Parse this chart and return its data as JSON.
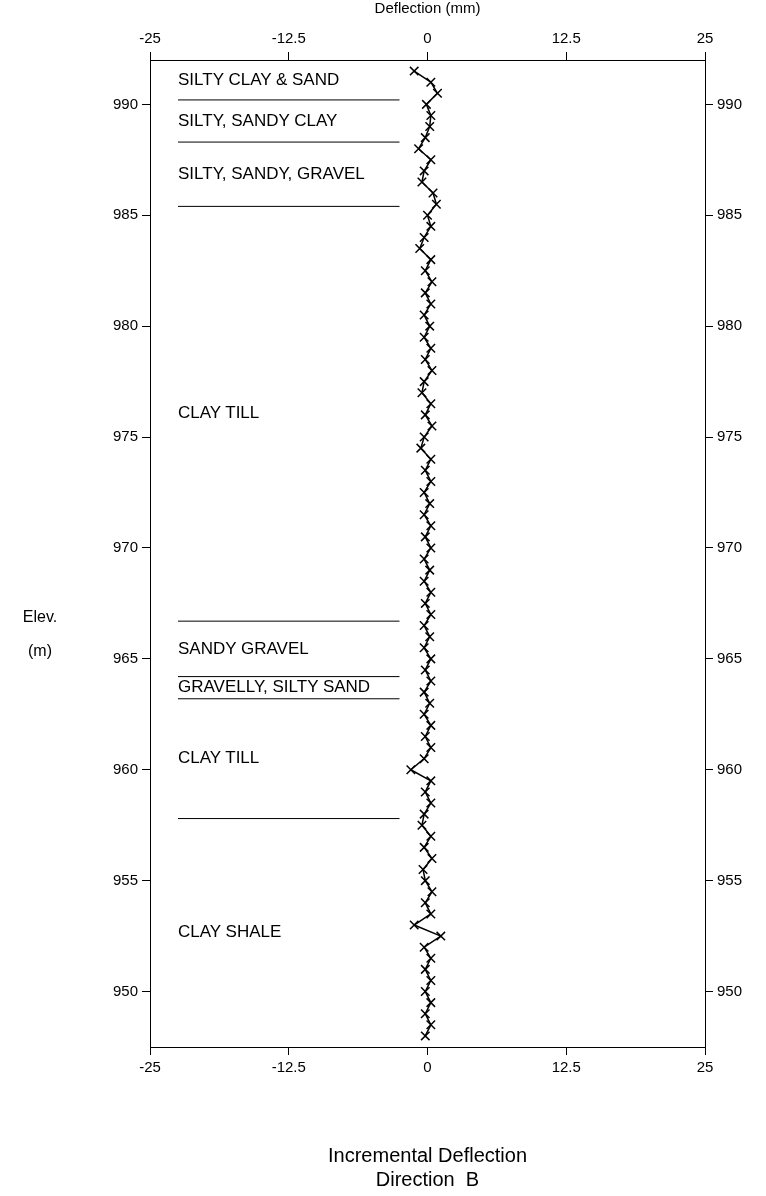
{
  "chart_data": {
    "type": "line",
    "xlabel": "Incremental Deflection\nDirection  B",
    "x2label": "Deflection (mm)",
    "ylabel": "Elev.\n(m)",
    "xlim": [
      -25,
      25
    ],
    "xticks": [
      -25,
      -12.5,
      0,
      12.5,
      25
    ],
    "x2lim": [
      -25,
      25
    ],
    "x2ticks": [
      -25,
      -12.5,
      0,
      12.5,
      25
    ],
    "ylim": [
      947.5,
      992
    ],
    "yticks": [
      950,
      955,
      960,
      965,
      970,
      975,
      980,
      985,
      990
    ],
    "y2lim": [
      947.5,
      992
    ],
    "y2ticks": [
      950,
      955,
      960,
      965,
      970,
      975,
      980,
      985,
      990
    ],
    "grid": false,
    "legend": false,
    "marker": "cross",
    "line_style": "solid",
    "series": [
      {
        "color": "#000000",
        "x": [
          -1.2,
          0.3,
          0.9,
          -0.1,
          0.3,
          0.2,
          -0.2,
          -0.8,
          0.3,
          -0.3,
          -0.5,
          0.5,
          0.8,
          0,
          0.3,
          -0.3,
          -0.7,
          0.3,
          -0.2,
          0.4,
          -0.2,
          0.3,
          -0.3,
          0.2,
          -0.3,
          0.3,
          -0.2,
          0.4,
          -0.3,
          -0.5,
          0.3,
          -0.2,
          0.4,
          -0.3,
          -0.6,
          0.3,
          -0.2,
          0.3,
          -0.3,
          0.2,
          -0.3,
          0.3,
          -0.2,
          0.3,
          -0.3,
          0.2,
          -0.3,
          0.3,
          -0.2,
          0.3,
          -0.3,
          0.2,
          -0.3,
          0.3,
          -0.2,
          0.3,
          -0.3,
          0.2,
          -0.3,
          0.3,
          -0.2,
          0.3,
          -0.3,
          -1.5,
          0.3,
          -0.2,
          0.3,
          -0.3,
          -0.5,
          0.3,
          -0.3,
          0.4,
          -0.4,
          -0.2,
          0.4,
          -0.2,
          0.3,
          -1.2,
          1.2,
          -0.3,
          0.3,
          -0.2,
          0.3,
          -0.2,
          0.3,
          -0.2,
          0.3,
          -0.2
        ],
        "values": [
          991.5,
          991,
          990.5,
          990,
          989.5,
          989,
          988.5,
          988,
          987.5,
          987,
          986.5,
          986,
          985.5,
          985,
          984.5,
          984,
          983.5,
          983,
          982.5,
          982,
          981.5,
          981,
          980.5,
          980,
          979.5,
          979,
          978.5,
          978,
          977.5,
          977,
          976.5,
          976,
          975.5,
          975,
          974.5,
          974,
          973.5,
          973,
          972.5,
          972,
          971.5,
          971,
          970.5,
          970,
          969.5,
          969,
          968.5,
          968,
          967.5,
          967,
          966.5,
          966,
          965.5,
          965,
          964.5,
          964,
          963.5,
          963,
          962.5,
          962,
          961.5,
          961,
          960.5,
          960,
          959.5,
          959,
          958.5,
          958,
          957.5,
          957,
          956.5,
          956,
          955.5,
          955,
          954.5,
          954,
          953.5,
          953,
          952.5,
          952,
          951.5,
          951,
          950.5,
          950,
          949.5,
          949,
          948.5,
          948
        ]
      }
    ],
    "ref_lines": [
      {
        "axis": "y",
        "value": 990.2
      },
      {
        "axis": "y",
        "value": 988.3
      },
      {
        "axis": "y",
        "value": 985.4
      },
      {
        "axis": "y",
        "value": 966.7
      },
      {
        "axis": "y",
        "value": 964.2
      },
      {
        "axis": "y",
        "value": 963.2
      },
      {
        "axis": "y",
        "value": 957.8
      }
    ],
    "annotations": [
      "SILTY CLAY & SAND",
      "SILTY, SANDY CLAY",
      "SILTY, SANDY, GRAVEL",
      "CLAY TILL",
      "SANDY GRAVEL",
      "GRAVELLY, SILTY SAND",
      "CLAY TILL",
      "CLAY SHALE"
    ]
  }
}
